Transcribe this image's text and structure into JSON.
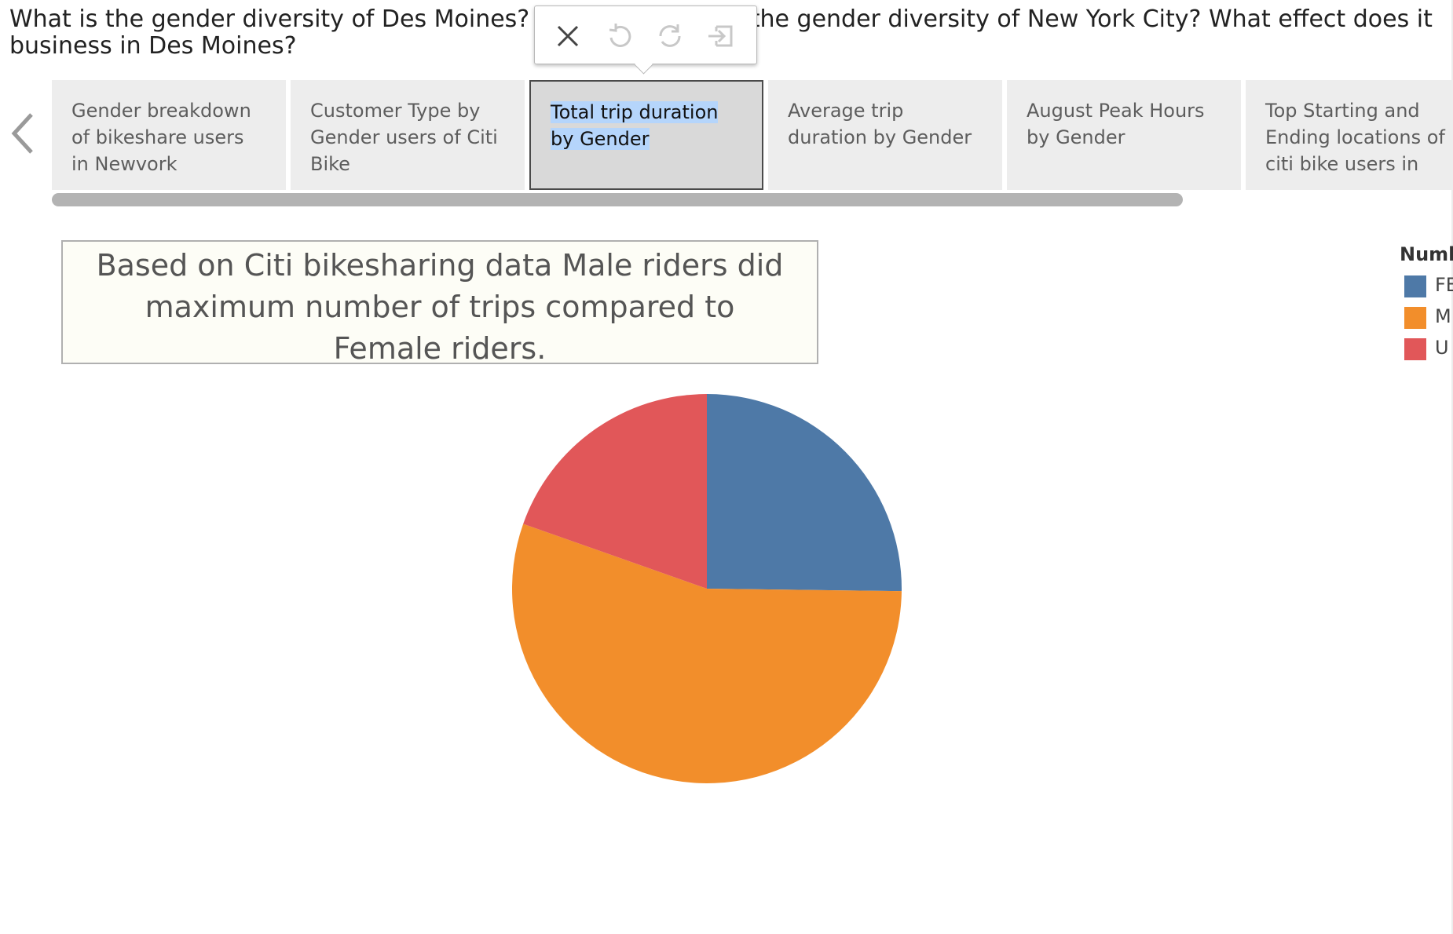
{
  "story": {
    "title": "What is the gender diversity of Des Moines? H                      to the gender diversity of New York City? What effect does it\nbusiness in Des Moines?"
  },
  "popup": {
    "icons": [
      "close-icon",
      "undo-icon",
      "refresh-icon",
      "exit-icon"
    ]
  },
  "tabs": [
    {
      "label": "Gender breakdown of bikeshare users in Newvork",
      "active": false
    },
    {
      "label": "Customer Type by Gender users of Citi Bike",
      "active": false
    },
    {
      "label": "Total trip duration by Gender",
      "active": true
    },
    {
      "label": "Average trip duration by Gender",
      "active": false
    },
    {
      "label": "August Peak Hours by Gender",
      "active": false
    },
    {
      "label": "Top Starting and Ending locations of citi bike users in",
      "active": false
    }
  ],
  "caption": "Based on Citi bikesharing data Male riders did maximum number of trips compared to Female riders.",
  "legend": {
    "title": "Numb",
    "items": [
      {
        "label": "FE",
        "color": "#4e79a7"
      },
      {
        "label": "M",
        "color": "#f28e2b"
      },
      {
        "label": "U",
        "color": "#e15759"
      }
    ]
  },
  "chart_data": {
    "type": "pie",
    "series": [
      {
        "name": "FE",
        "value": 0.252,
        "color": "#4e79a7"
      },
      {
        "name": "M",
        "value": 0.552,
        "color": "#f28e2b"
      },
      {
        "name": "U",
        "value": 0.196,
        "color": "#e15759"
      }
    ]
  }
}
